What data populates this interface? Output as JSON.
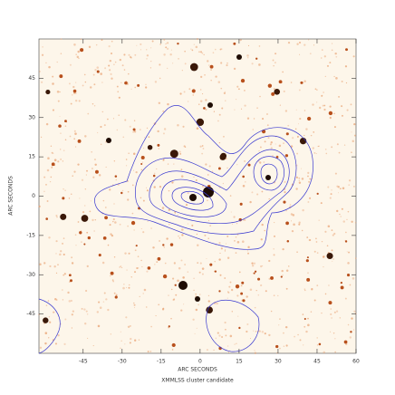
{
  "chart_data": {
    "type": "image",
    "title": "XMMLSS cluster candidate",
    "x_label": "ARC SECONDS",
    "y_label": "ARC SECONDS",
    "xlim": [
      -62,
      60
    ],
    "ylim": [
      -60,
      60
    ],
    "xticks": [
      -45,
      -30,
      -15,
      0,
      15,
      30,
      45,
      60
    ],
    "yticks": [
      -45,
      -30,
      -15,
      0,
      15,
      30,
      45
    ]
  }
}
